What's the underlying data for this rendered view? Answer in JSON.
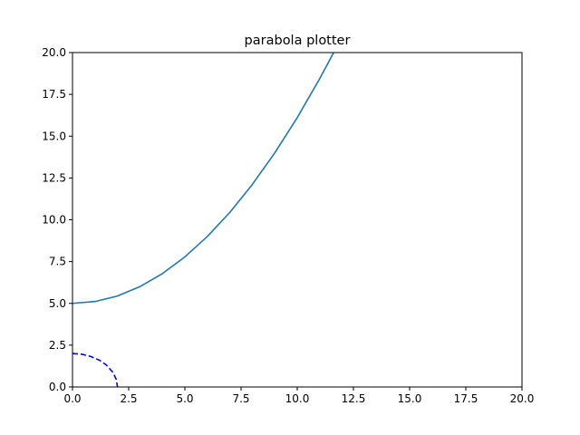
{
  "chart_data": {
    "type": "line",
    "title": "parabola  plotter",
    "xlabel": "",
    "ylabel": "",
    "xlim": [
      0,
      20
    ],
    "ylim": [
      0,
      20
    ],
    "grid": false,
    "xticks": [
      "0.0",
      "2.5",
      "5.0",
      "7.5",
      "10.0",
      "12.5",
      "15.0",
      "17.5",
      "20.0"
    ],
    "yticks": [
      "0.0",
      "2.5",
      "5.0",
      "7.5",
      "10.0",
      "12.5",
      "15.0",
      "17.5",
      "20.0"
    ],
    "series": [
      {
        "color": "#1f77b4",
        "style": "solid",
        "x": [
          0,
          1,
          2,
          3,
          4,
          5,
          6,
          7,
          8,
          9,
          10,
          11,
          11.7
        ],
        "y": [
          5.0,
          5.11,
          5.44,
          6.0,
          6.78,
          7.78,
          9.0,
          10.44,
          12.11,
          14.0,
          16.11,
          18.44,
          20.2
        ]
      },
      {
        "color": "#0000ff",
        "style": "dashed",
        "x": [
          0,
          0.4,
          0.8,
          1.2,
          1.5,
          1.8,
          1.95,
          2.0
        ],
        "y": [
          2.0,
          1.96,
          1.83,
          1.6,
          1.32,
          0.87,
          0.44,
          0.0
        ]
      }
    ]
  }
}
